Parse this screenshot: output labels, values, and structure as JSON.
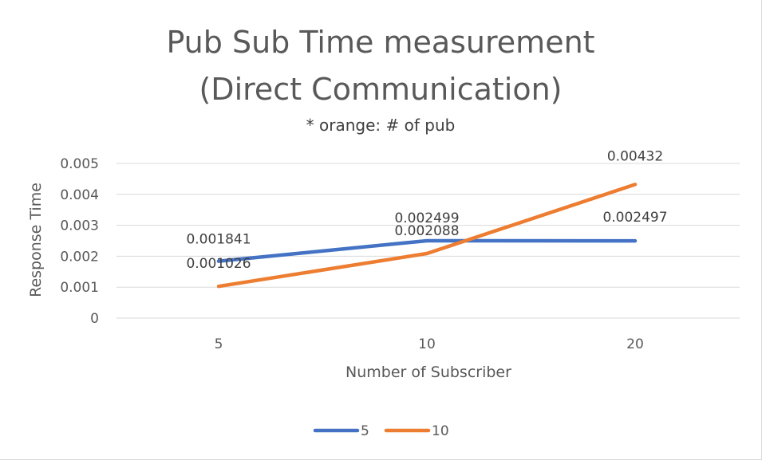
{
  "chart_data": {
    "type": "line",
    "title_lines": [
      "Pub Sub Time measurement",
      "(Direct Communication)"
    ],
    "subtitle": "* orange: # of pub",
    "xlabel": "Number of Subscriber",
    "ylabel": "Response Time",
    "categories": [
      "5",
      "10",
      "20"
    ],
    "y_ticks": [
      "0",
      "0.001",
      "0.002",
      "0.003",
      "0.004",
      "0.005"
    ],
    "ylim": [
      0,
      0.005
    ],
    "grid": true,
    "legend_position": "bottom",
    "series": [
      {
        "name": "5",
        "color": "#4472c4",
        "values": [
          0.001841,
          0.002499,
          0.002497
        ],
        "labels": [
          "0.001841",
          "0.002499",
          "0.002497"
        ]
      },
      {
        "name": "10",
        "color": "#ed7d31",
        "values": [
          0.001026,
          0.002088,
          0.00432
        ],
        "labels": [
          "0.001026",
          "0.002088",
          "0.00432"
        ]
      }
    ]
  }
}
